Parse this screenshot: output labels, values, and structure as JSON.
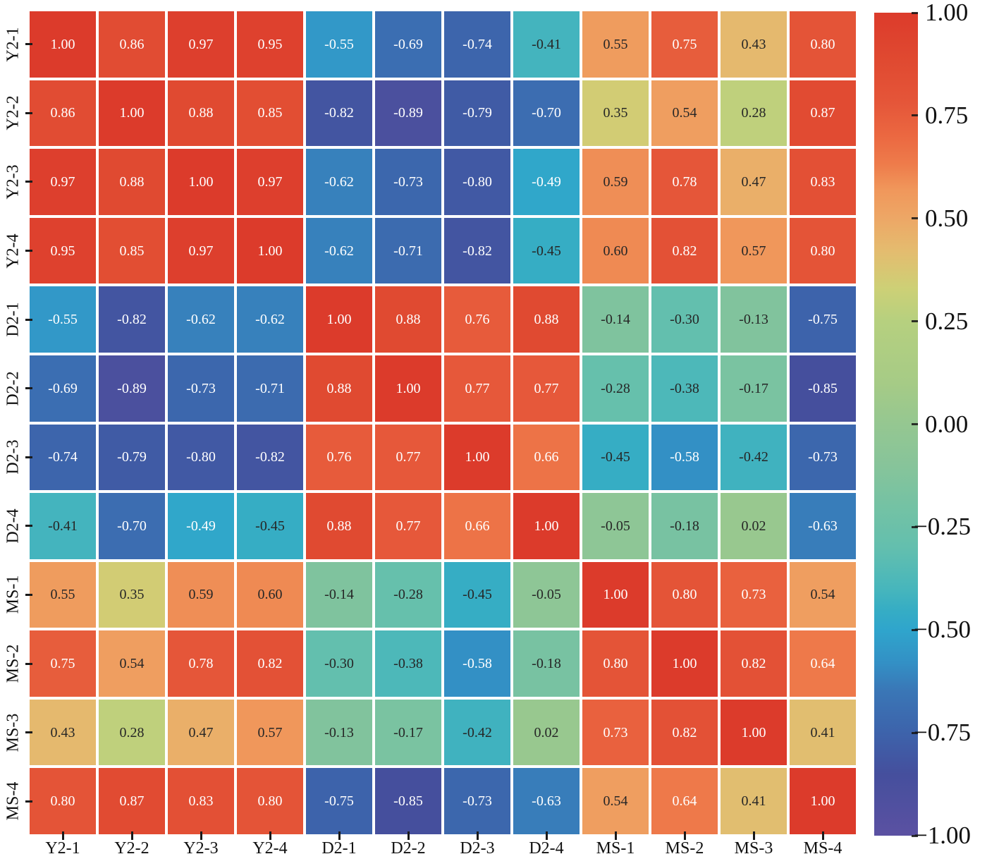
{
  "figure": {
    "background": "#ffffff",
    "grid_line_color": "#ffffff",
    "tick_color": "#1a1a1a",
    "label_color": "#111111"
  },
  "chart_data": {
    "type": "heatmap",
    "title": "",
    "xlabel": "",
    "ylabel": "",
    "x_tick_labels": [
      "Y2-1",
      "Y2-2",
      "Y2-3",
      "Y2-4",
      "D2-1",
      "D2-2",
      "D2-3",
      "D2-4",
      "MS-1",
      "MS-2",
      "MS-3",
      "MS-4"
    ],
    "y_tick_labels": [
      "Y2-1",
      "Y2-2",
      "Y2-3",
      "Y2-4",
      "D2-1",
      "D2-2",
      "D2-3",
      "D2-4",
      "MS-1",
      "MS-2",
      "MS-3",
      "MS-4"
    ],
    "matrix": [
      [
        1.0,
        0.86,
        0.97,
        0.95,
        -0.55,
        -0.69,
        -0.74,
        -0.41,
        0.55,
        0.75,
        0.43,
        0.8
      ],
      [
        0.86,
        1.0,
        0.88,
        0.85,
        -0.82,
        -0.89,
        -0.79,
        -0.7,
        0.35,
        0.54,
        0.28,
        0.87
      ],
      [
        0.97,
        0.88,
        1.0,
        0.97,
        -0.62,
        -0.73,
        -0.8,
        -0.49,
        0.59,
        0.78,
        0.47,
        0.83
      ],
      [
        0.95,
        0.85,
        0.97,
        1.0,
        -0.62,
        -0.71,
        -0.82,
        -0.45,
        0.6,
        0.82,
        0.57,
        0.8
      ],
      [
        -0.55,
        -0.82,
        -0.62,
        -0.62,
        1.0,
        0.88,
        0.76,
        0.88,
        -0.14,
        -0.3,
        -0.13,
        -0.75
      ],
      [
        -0.69,
        -0.89,
        -0.73,
        -0.71,
        0.88,
        1.0,
        0.77,
        0.77,
        -0.28,
        -0.38,
        -0.17,
        -0.85
      ],
      [
        -0.74,
        -0.79,
        -0.8,
        -0.82,
        0.76,
        0.77,
        1.0,
        0.66,
        -0.45,
        -0.58,
        -0.42,
        -0.73
      ],
      [
        -0.41,
        -0.7,
        -0.49,
        -0.45,
        0.88,
        0.77,
        0.66,
        1.0,
        -0.05,
        -0.18,
        0.02,
        -0.63
      ],
      [
        0.55,
        0.35,
        0.59,
        0.6,
        -0.14,
        -0.28,
        -0.45,
        -0.05,
        1.0,
        0.8,
        0.73,
        0.54
      ],
      [
        0.75,
        0.54,
        0.78,
        0.82,
        -0.3,
        -0.38,
        -0.58,
        -0.18,
        0.8,
        1.0,
        0.82,
        0.64
      ],
      [
        0.43,
        0.28,
        0.47,
        0.57,
        -0.13,
        -0.17,
        -0.42,
        0.02,
        0.73,
        0.82,
        1.0,
        0.41
      ],
      [
        0.8,
        0.87,
        0.83,
        0.8,
        -0.75,
        -0.85,
        -0.73,
        -0.63,
        0.54,
        0.64,
        0.41,
        1.0
      ]
    ],
    "vmin": -1.0,
    "vmax": 1.0,
    "annotation": {
      "format_decimals": 2,
      "dark_text": "#262626",
      "light_text": "#ffffff",
      "luminance_threshold": 0.345
    },
    "colormap_stops": [
      [
        -1.0,
        "#5b51a2"
      ],
      [
        -0.85,
        "#454f9d"
      ],
      [
        -0.75,
        "#3d63ab"
      ],
      [
        -0.65,
        "#3a76b6"
      ],
      [
        -0.58,
        "#3390c5"
      ],
      [
        -0.5,
        "#2fa5cc"
      ],
      [
        -0.45,
        "#36adc4"
      ],
      [
        -0.4,
        "#47b6bc"
      ],
      [
        -0.3,
        "#63bfae"
      ],
      [
        -0.2,
        "#74c2a4"
      ],
      [
        -0.1,
        "#87c49a"
      ],
      [
        0.0,
        "#95c791"
      ],
      [
        0.1,
        "#a6cb86"
      ],
      [
        0.25,
        "#b6d07f"
      ],
      [
        0.33,
        "#cdd076"
      ],
      [
        0.42,
        "#e4bc6f"
      ],
      [
        0.5,
        "#eda766"
      ],
      [
        0.57,
        "#f0975b"
      ],
      [
        0.63,
        "#ee7c4b"
      ],
      [
        0.7,
        "#eb6841"
      ],
      [
        0.78,
        "#e55639"
      ],
      [
        0.88,
        "#e04a31"
      ],
      [
        1.0,
        "#dc3b2b"
      ]
    ],
    "colorbar": {
      "position": "right",
      "tick_values": [
        1.0,
        0.75,
        0.5,
        0.25,
        0.0,
        -0.25,
        -0.5,
        -0.75,
        -1.0
      ],
      "tick_labels": [
        "1.00",
        "0.75",
        "0.50",
        "0.25",
        "0.00",
        "−0.25",
        "−0.50",
        "−0.75",
        "−1.00"
      ]
    },
    "grid": "white 4px cell borders",
    "legend": "none"
  }
}
